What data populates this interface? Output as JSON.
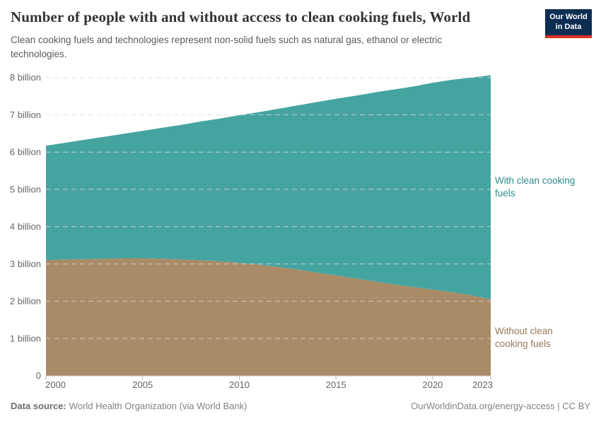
{
  "header": {
    "title": "Number of people with and without access to clean cooking fuels, World",
    "subtitle": "Clean cooking fuels and technologies represent non-solid fuels such as natural gas, ethanol or electric technologies.",
    "logo": {
      "line1": "Our World",
      "line2": "in Data",
      "bg_color": "#0d2e52",
      "bar_color": "#dc2e27"
    }
  },
  "chart_data": {
    "type": "area",
    "stacked": true,
    "title": "Number of people with and without access to clean cooking fuels, World",
    "xlabel": "",
    "ylabel": "",
    "grid": true,
    "legend_position": "right-annotations",
    "xlim": [
      2000,
      2023
    ],
    "ylim": [
      0,
      8
    ],
    "x": [
      2000,
      2001,
      2002,
      2003,
      2004,
      2005,
      2006,
      2007,
      2008,
      2009,
      2010,
      2011,
      2012,
      2013,
      2014,
      2015,
      2016,
      2017,
      2018,
      2019,
      2020,
      2021,
      2022,
      2023
    ],
    "series": [
      {
        "name": "Without clean cooking fuels",
        "unit": "billion",
        "color": "#a98b67",
        "values": [
          3.1,
          3.12,
          3.13,
          3.14,
          3.15,
          3.15,
          3.14,
          3.12,
          3.1,
          3.07,
          3.03,
          2.98,
          2.92,
          2.85,
          2.77,
          2.69,
          2.61,
          2.53,
          2.45,
          2.38,
          2.31,
          2.24,
          2.16,
          2.05
        ]
      },
      {
        "name": "With clean cooking fuels",
        "unit": "billion",
        "color": "#46a4a0",
        "values": [
          3.07,
          3.13,
          3.2,
          3.27,
          3.34,
          3.42,
          3.51,
          3.61,
          3.72,
          3.83,
          3.96,
          4.09,
          4.24,
          4.4,
          4.57,
          4.74,
          4.9,
          5.07,
          5.23,
          5.38,
          5.55,
          5.7,
          5.84,
          6.01
        ]
      }
    ],
    "x_ticks": [
      2000,
      2005,
      2010,
      2015,
      2020,
      2023
    ],
    "y_ticks": [
      {
        "v": 0,
        "label": "0"
      },
      {
        "v": 1,
        "label": "1 billion"
      },
      {
        "v": 2,
        "label": "2 billion"
      },
      {
        "v": 3,
        "label": "3 billion"
      },
      {
        "v": 4,
        "label": "4 billion"
      },
      {
        "v": 5,
        "label": "5 billion"
      },
      {
        "v": 6,
        "label": "6 billion"
      },
      {
        "v": 7,
        "label": "7 billion"
      },
      {
        "v": 8,
        "label": "8 billion"
      }
    ]
  },
  "annotations": {
    "with": {
      "line1": "With clean cooking",
      "line2": "fuels",
      "color": "#2e8c8a"
    },
    "without": {
      "line1": "Without clean",
      "line2": "cooking fuels",
      "color": "#96795a"
    }
  },
  "footer": {
    "source_label": "Data source:",
    "source_text": "World Health Organization (via World Bank)",
    "credit": "OurWorldinData.org/energy-access | CC BY"
  }
}
